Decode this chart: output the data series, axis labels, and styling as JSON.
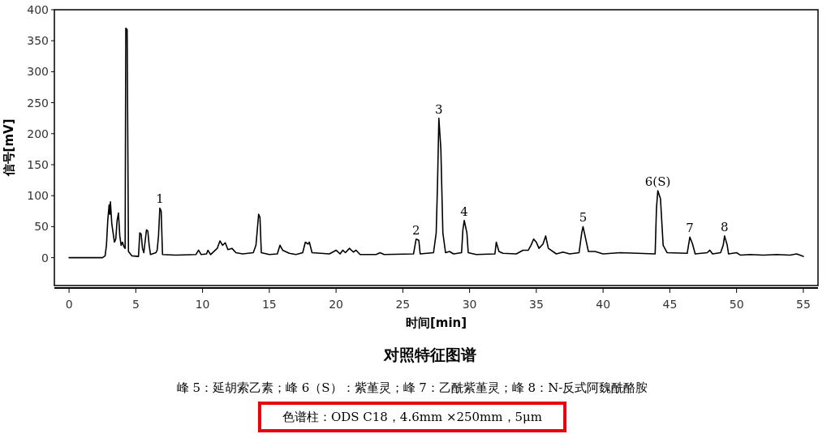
{
  "chart_data": {
    "type": "line",
    "title": "对照特征图谱",
    "xlabel": "时间[min]",
    "ylabel": "信号[mV]",
    "xlim": [
      -1.1,
      56.1
    ],
    "ylim": [
      -45,
      400
    ],
    "xticks": [
      0,
      5,
      10,
      15,
      20,
      25,
      30,
      35,
      40,
      45,
      50,
      55
    ],
    "yticks": [
      0,
      50,
      100,
      150,
      200,
      250,
      300,
      350,
      400
    ],
    "x": [
      0,
      2.5,
      2.7,
      2.8,
      2.9,
      3.0,
      3.05,
      3.1,
      3.2,
      3.3,
      3.4,
      3.5,
      3.6,
      3.7,
      3.8,
      3.9,
      4.0,
      4.1,
      4.2,
      4.25,
      4.35,
      4.45,
      4.7,
      5.2,
      5.3,
      5.4,
      5.5,
      5.6,
      5.8,
      5.9,
      6.0,
      6.1,
      6.5,
      6.6,
      6.7,
      6.8,
      6.9,
      7.0,
      8,
      9.5,
      9.7,
      9.9,
      10.3,
      10.4,
      10.6,
      11.1,
      11.3,
      11.5,
      11.7,
      11.9,
      12.2,
      12.5,
      13,
      13.8,
      14.0,
      14.1,
      14.2,
      14.3,
      14.4,
      15,
      15.6,
      15.8,
      16,
      16.5,
      17,
      17.5,
      17.7,
      17.9,
      18.0,
      18.2,
      19.5,
      20,
      20.3,
      20.5,
      20.7,
      21,
      21.3,
      21.5,
      21.8,
      23,
      23.3,
      23.6,
      25.8,
      26.0,
      26.2,
      26.3,
      27.3,
      27.5,
      27.6,
      27.7,
      27.85,
      28.0,
      28.2,
      28.5,
      28.8,
      29.4,
      29.5,
      29.6,
      29.8,
      29.9,
      30.5,
      31.9,
      32.0,
      32.2,
      32.5,
      33.5,
      34,
      34.4,
      34.6,
      34.8,
      35,
      35.2,
      35.5,
      35.7,
      35.9,
      36.5,
      37,
      37.5,
      38.2,
      38.4,
      38.5,
      38.7,
      38.9,
      39.4,
      40,
      41.3,
      43.9,
      44.0,
      44.1,
      44.3,
      44.5,
      44.8,
      46.3,
      46.4,
      46.5,
      46.7,
      46.9,
      47.8,
      48.0,
      48.2,
      48.8,
      49.0,
      49.1,
      49.3,
      49.4,
      50,
      50.3,
      51,
      52,
      53,
      54,
      54.5,
      55
    ],
    "values": [
      0,
      0,
      3,
      20,
      60,
      85,
      70,
      90,
      55,
      40,
      25,
      30,
      60,
      72,
      35,
      20,
      25,
      18,
      15,
      370,
      368,
      10,
      3,
      2,
      40,
      38,
      15,
      8,
      45,
      43,
      20,
      5,
      8,
      12,
      35,
      80,
      75,
      5,
      4,
      5,
      12,
      5,
      6,
      12,
      5,
      15,
      27,
      20,
      24,
      13,
      15,
      8,
      6,
      8,
      20,
      45,
      70,
      65,
      8,
      5,
      6,
      20,
      12,
      7,
      5,
      8,
      25,
      22,
      25,
      8,
      6,
      12,
      6,
      12,
      8,
      15,
      9,
      12,
      5,
      5,
      8,
      5,
      6,
      30,
      28,
      6,
      8,
      40,
      120,
      225,
      175,
      40,
      8,
      10,
      6,
      8,
      45,
      60,
      40,
      8,
      5,
      6,
      25,
      10,
      7,
      6,
      12,
      12,
      20,
      30,
      25,
      15,
      22,
      35,
      15,
      6,
      9,
      6,
      8,
      40,
      50,
      30,
      10,
      10,
      6,
      8,
      6,
      80,
      108,
      95,
      20,
      8,
      7,
      20,
      33,
      22,
      6,
      8,
      12,
      6,
      8,
      20,
      35,
      20,
      6,
      8,
      4,
      5,
      4,
      5,
      4,
      6,
      2
    ],
    "color": "#000000",
    "annotations": [
      {
        "text": "1",
        "x": 6.8,
        "y": 80
      },
      {
        "text": "2",
        "x": 26.0,
        "y": 30
      },
      {
        "text": "3",
        "x": 27.7,
        "y": 225
      },
      {
        "text": "4",
        "x": 29.6,
        "y": 60
      },
      {
        "text": "5",
        "x": 38.5,
        "y": 50
      },
      {
        "text": "6(S)",
        "x": 44.1,
        "y": 108
      },
      {
        "text": "7",
        "x": 46.5,
        "y": 33
      },
      {
        "text": "8",
        "x": 49.1,
        "y": 35
      },
      "峰 5：延胡索乙素；峰 6（S）：紫堇灵；峰 7：乙酰紫堇灵；峰 8：N-反式阿魏酰酪胺",
      "色谱柱：ODS C18，4.6mm ×250mm，5μm"
    ]
  }
}
